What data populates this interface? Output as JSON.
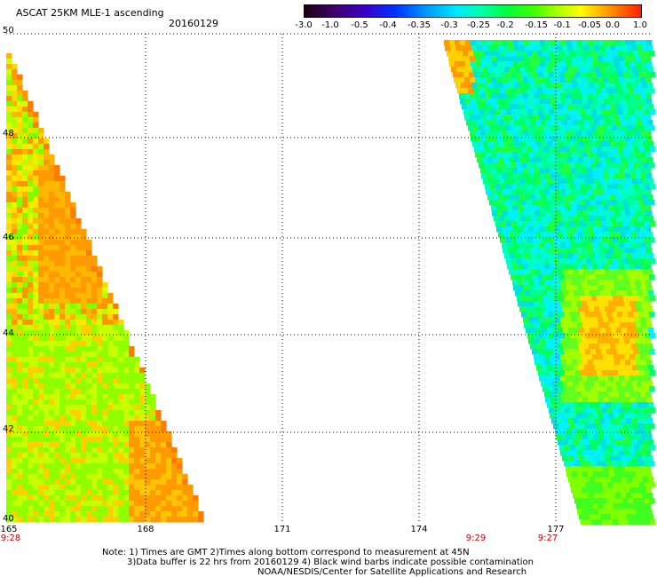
{
  "header": {
    "title": "ASCAT 25KM MLE-1 ascending",
    "date": "20160129"
  },
  "colorbar": {
    "tick_labels": [
      "-3.0",
      "-1.0",
      "-0.5",
      "-0.4",
      "-0.35",
      "-0.3",
      "-0.25",
      "-0.2",
      "-0.15",
      "-0.1",
      "-0.05",
      "0.0",
      "1.0"
    ],
    "colors": [
      "#1a0010",
      "#40006a",
      "#3a00c8",
      "#0032ff",
      "#0096ff",
      "#00e8ff",
      "#00ffb0",
      "#00ff40",
      "#40ff00",
      "#a8ff00",
      "#ffff00",
      "#ff9c00",
      "#ff2000"
    ]
  },
  "map": {
    "lat_labels": [
      "50",
      "48",
      "46",
      "44",
      "42",
      "40"
    ],
    "lon_labels": [
      "165",
      "168",
      "171",
      "174",
      "177"
    ],
    "time_labels": [
      "9:28",
      "9:29",
      "9:27"
    ],
    "lat_range": [
      40,
      50
    ],
    "lon_range": [
      165,
      179.5
    ]
  },
  "notes": {
    "line1": "Note: 1) Times are GMT 2)Times along bottom correspond to measurement at 45N",
    "line2": "3)Data buffer is 22 hrs from 20160129 4) Black wind barbs indicate possible contamination",
    "line3": "NOAA/NESDIS/Center for Satellite Applications and Research"
  }
}
